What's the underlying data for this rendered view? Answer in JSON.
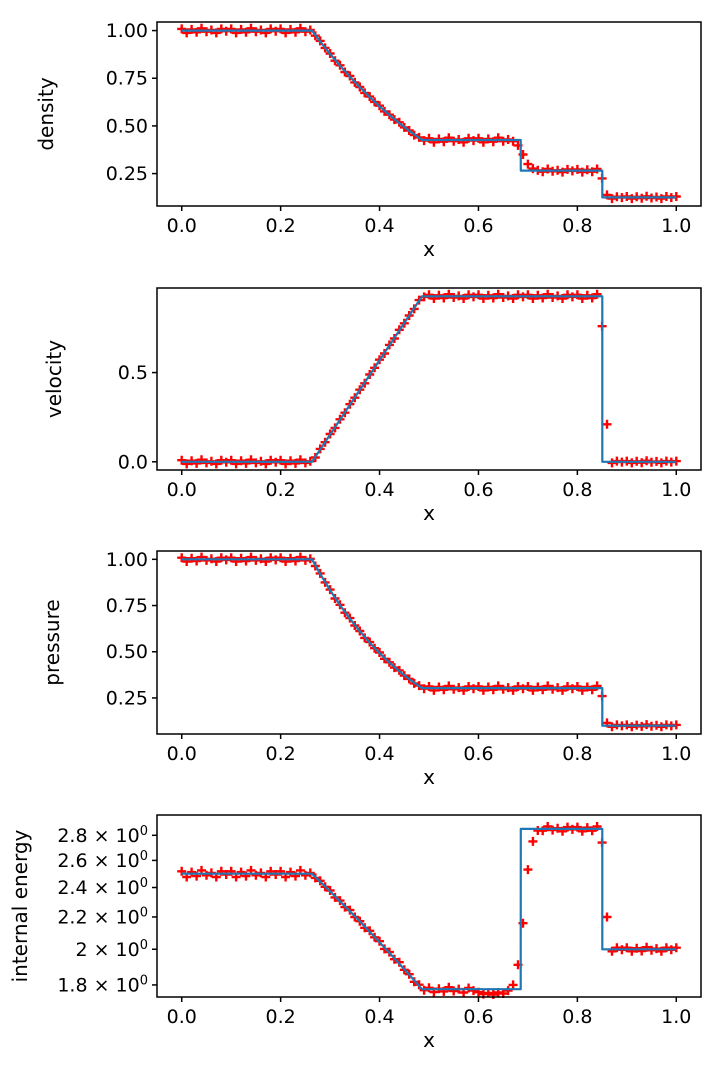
{
  "figure": {
    "background": "#ffffff",
    "line_color": "#1f77b4",
    "marker_color": "#ff0000",
    "marker_symbol": "+",
    "axis_color": "#000000"
  },
  "chart_data": {
    "type": "line",
    "legend": "off",
    "grid": "off",
    "xlabel": "x",
    "xlim": [
      -0.05,
      1.05
    ],
    "xticks": [
      0.0,
      0.2,
      0.4,
      0.6,
      0.8,
      1.0
    ],
    "xtick_labels": [
      "0.0",
      "0.2",
      "0.4",
      "0.6",
      "0.8",
      "1.0"
    ],
    "markers_x": [
      0.0,
      0.01,
      0.02,
      0.03,
      0.04,
      0.05,
      0.06,
      0.07,
      0.08,
      0.09,
      0.1,
      0.11,
      0.12,
      0.13,
      0.14,
      0.15,
      0.16,
      0.17,
      0.18,
      0.19,
      0.2,
      0.21,
      0.22,
      0.23,
      0.24,
      0.25,
      0.26,
      0.27,
      0.28,
      0.29,
      0.3,
      0.31,
      0.32,
      0.33,
      0.34,
      0.35,
      0.36,
      0.37,
      0.38,
      0.39,
      0.4,
      0.41,
      0.42,
      0.43,
      0.44,
      0.45,
      0.46,
      0.47,
      0.48,
      0.49,
      0.5,
      0.51,
      0.52,
      0.53,
      0.54,
      0.55,
      0.56,
      0.57,
      0.58,
      0.59,
      0.6,
      0.61,
      0.62,
      0.63,
      0.64,
      0.65,
      0.66,
      0.67,
      0.68,
      0.69,
      0.7,
      0.71,
      0.72,
      0.73,
      0.74,
      0.75,
      0.76,
      0.77,
      0.78,
      0.79,
      0.8,
      0.81,
      0.82,
      0.83,
      0.84,
      0.85,
      0.86,
      0.87,
      0.88,
      0.89,
      0.9,
      0.91,
      0.92,
      0.93,
      0.94,
      0.95,
      0.96,
      0.97,
      0.98,
      0.99,
      1.0
    ],
    "panels": [
      {
        "ylabel": "density",
        "yscale": "linear",
        "ylim": [
          0.08,
          1.045
        ],
        "yticks": [
          0.25,
          0.5,
          0.75,
          1.0
        ],
        "ytick_labels": [
          "0.25",
          "0.50",
          "0.75",
          "1.00"
        ],
        "line_x": [
          0,
          0.2634,
          0.28,
          0.3,
          0.32,
          0.34,
          0.36,
          0.38,
          0.4,
          0.42,
          0.44,
          0.46,
          0.4859,
          0.6855,
          0.6856,
          0.8504,
          0.8505,
          1.0
        ],
        "line_y": [
          1.0,
          1.0,
          0.9428,
          0.8774,
          0.8158,
          0.7577,
          0.7029,
          0.6514,
          0.603,
          0.5574,
          0.5146,
          0.4746,
          0.4263,
          0.4263,
          0.2656,
          0.2656,
          0.125,
          0.125
        ],
        "markers_y": [
          1.009,
          0.988,
          1.006,
          0.991,
          1.012,
          0.994,
          1.003,
          0.988,
          1.009,
          0.997,
          1.009,
          0.988,
          1.006,
          0.991,
          1.012,
          0.994,
          1.003,
          0.988,
          1.009,
          0.997,
          1.009,
          0.988,
          1.006,
          0.991,
          1.012,
          0.994,
          1.003,
          0.973,
          0.946,
          0.909,
          0.88,
          0.842,
          0.818,
          0.783,
          0.762,
          0.728,
          0.704,
          0.673,
          0.654,
          0.626,
          0.606,
          0.576,
          0.559,
          0.533,
          0.519,
          0.492,
          0.476,
          0.452,
          0.44,
          0.423,
          0.435,
          0.414,
          0.432,
          0.417,
          0.438,
          0.42,
          0.429,
          0.414,
          0.435,
          0.423,
          0.435,
          0.414,
          0.432,
          0.417,
          0.438,
          0.42,
          0.429,
          0.42,
          0.398,
          0.35,
          0.3,
          0.276,
          0.267,
          0.26,
          0.274,
          0.262,
          0.268,
          0.258,
          0.272,
          0.264,
          0.272,
          0.258,
          0.27,
          0.26,
          0.274,
          0.225,
          0.138,
          0.119,
          0.129,
          0.124,
          0.13,
          0.119,
          0.128,
          0.121,
          0.131,
          0.122,
          0.127,
          0.119,
          0.13,
          0.124,
          0.13
        ]
      },
      {
        "ylabel": "velocity",
        "yscale": "linear",
        "ylim": [
          -0.046,
          0.974
        ],
        "yticks": [
          0.0,
          0.5
        ],
        "ytick_labels": [
          "0.0",
          "0.5"
        ],
        "line_x": [
          0,
          0.2634,
          0.4859,
          0.8504,
          0.8505,
          1.0
        ],
        "line_y": [
          0,
          0,
          0.9274,
          0.9274,
          0,
          0
        ],
        "markers_y": [
          0.009,
          -0.012,
          0.006,
          -0.009,
          0.012,
          -0.006,
          0.003,
          -0.012,
          0.009,
          -0.003,
          0.009,
          -0.012,
          0.006,
          -0.009,
          0.012,
          -0.006,
          0.003,
          -0.012,
          0.009,
          -0.003,
          0.009,
          -0.012,
          0.006,
          -0.009,
          0.012,
          -0.006,
          0.003,
          0.024,
          0.072,
          0.11,
          0.156,
          0.19,
          0.238,
          0.275,
          0.323,
          0.359,
          0.404,
          0.44,
          0.489,
          0.527,
          0.572,
          0.607,
          0.655,
          0.691,
          0.74,
          0.776,
          0.82,
          0.857,
          0.906,
          0.924,
          0.936,
          0.915,
          0.933,
          0.918,
          0.939,
          0.921,
          0.93,
          0.915,
          0.936,
          0.924,
          0.936,
          0.915,
          0.933,
          0.918,
          0.939,
          0.921,
          0.93,
          0.915,
          0.936,
          0.924,
          0.936,
          0.915,
          0.933,
          0.918,
          0.939,
          0.921,
          0.93,
          0.915,
          0.936,
          0.924,
          0.936,
          0.915,
          0.933,
          0.918,
          0.939,
          0.76,
          0.21,
          -0.006,
          0.004,
          -0.002,
          0.004,
          -0.006,
          0.003,
          -0.005,
          0.006,
          -0.003,
          0.002,
          -0.006,
          0.004,
          -0.002,
          0.004
        ]
      },
      {
        "ylabel": "pressure",
        "yscale": "linear",
        "ylim": [
          0.055,
          1.045
        ],
        "yticks": [
          0.25,
          0.5,
          0.75,
          1.0
        ],
        "ytick_labels": [
          "0.25",
          "0.50",
          "0.75",
          "1.00"
        ],
        "line_x": [
          0,
          0.2634,
          0.28,
          0.3,
          0.32,
          0.34,
          0.36,
          0.38,
          0.4,
          0.42,
          0.44,
          0.46,
          0.4859,
          0.8504,
          0.8505,
          1.0
        ],
        "line_y": [
          1.0,
          1.0,
          0.9209,
          0.8327,
          0.7521,
          0.6782,
          0.6105,
          0.5488,
          0.4925,
          0.4412,
          0.3946,
          0.3522,
          0.3031,
          0.3031,
          0.1,
          0.1
        ],
        "markers_y": [
          1.009,
          0.988,
          1.006,
          0.991,
          1.012,
          0.994,
          1.003,
          0.988,
          1.009,
          0.997,
          1.009,
          0.988,
          1.006,
          0.991,
          1.012,
          0.994,
          1.003,
          0.988,
          1.009,
          0.997,
          1.009,
          0.988,
          1.006,
          0.991,
          1.012,
          0.994,
          1.003,
          0.964,
          0.924,
          0.875,
          0.836,
          0.788,
          0.754,
          0.711,
          0.682,
          0.642,
          0.612,
          0.575,
          0.552,
          0.519,
          0.496,
          0.462,
          0.443,
          0.414,
          0.399,
          0.371,
          0.353,
          0.329,
          0.317,
          0.3,
          0.312,
          0.291,
          0.309,
          0.294,
          0.315,
          0.297,
          0.306,
          0.291,
          0.312,
          0.3,
          0.312,
          0.291,
          0.309,
          0.294,
          0.315,
          0.297,
          0.306,
          0.291,
          0.312,
          0.3,
          0.312,
          0.291,
          0.309,
          0.294,
          0.315,
          0.297,
          0.306,
          0.291,
          0.312,
          0.3,
          0.312,
          0.291,
          0.309,
          0.294,
          0.315,
          0.26,
          0.115,
          0.094,
          0.104,
          0.099,
          0.104,
          0.094,
          0.103,
          0.096,
          0.106,
          0.097,
          0.102,
          0.094,
          0.104,
          0.099,
          0.104
        ]
      },
      {
        "ylabel": "internal energy",
        "yscale": "log",
        "ylim": [
          1.737,
          2.973
        ],
        "yticks": [
          1.8,
          2.0,
          2.2,
          2.4,
          2.6,
          2.8
        ],
        "ytick_labels": [
          "1.8 × 10^0",
          "2 × 10^0",
          "2.2 × 10^0",
          "2.4 × 10^0",
          "2.6 × 10^0",
          "2.8 × 10^0"
        ],
        "line_x": [
          0,
          0.2634,
          0.28,
          0.3,
          0.32,
          0.34,
          0.36,
          0.38,
          0.4,
          0.42,
          0.44,
          0.46,
          0.4859,
          0.6855,
          0.6856,
          0.8504,
          0.8505,
          1.0
        ],
        "line_y": [
          2.5,
          2.5,
          2.4421,
          2.3726,
          2.3045,
          2.2374,
          2.1712,
          2.1061,
          2.042,
          1.9788,
          1.9166,
          1.8555,
          1.7776,
          1.7776,
          2.8535,
          2.8535,
          2.0,
          2.0
        ],
        "markers_y": [
          2.518,
          2.476,
          2.512,
          2.482,
          2.524,
          2.488,
          2.506,
          2.476,
          2.518,
          2.494,
          2.518,
          2.476,
          2.512,
          2.482,
          2.524,
          2.488,
          2.506,
          2.476,
          2.518,
          2.494,
          2.518,
          2.476,
          2.512,
          2.482,
          2.524,
          2.488,
          2.506,
          2.469,
          2.448,
          2.405,
          2.379,
          2.331,
          2.309,
          2.265,
          2.245,
          2.2,
          2.173,
          2.131,
          2.112,
          2.072,
          2.048,
          2.002,
          1.983,
          1.942,
          1.925,
          1.882,
          1.858,
          1.817,
          1.801,
          1.772,
          1.785,
          1.763,
          1.78,
          1.766,
          1.788,
          1.768,
          1.778,
          1.76,
          1.784,
          1.77,
          1.762,
          1.752,
          1.758,
          1.75,
          1.76,
          1.755,
          1.77,
          1.8,
          1.91,
          2.16,
          2.53,
          2.75,
          2.84,
          2.838,
          2.874,
          2.843,
          2.859,
          2.833,
          2.869,
          2.849,
          2.869,
          2.833,
          2.864,
          2.838,
          2.874,
          2.74,
          2.2,
          1.988,
          2.009,
          1.997,
          2.009,
          1.988,
          2.006,
          1.99,
          2.012,
          1.994,
          2.004,
          1.988,
          2.009,
          1.997,
          2.009
        ]
      }
    ]
  }
}
